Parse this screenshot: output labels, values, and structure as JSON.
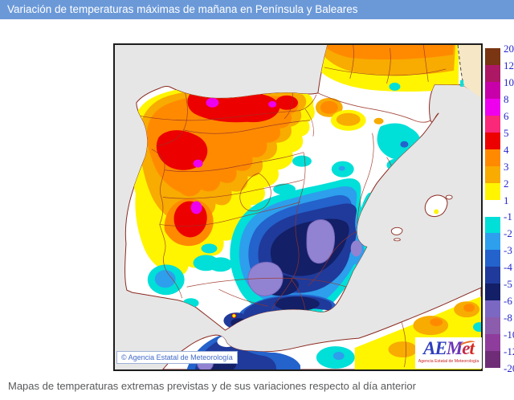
{
  "header": {
    "title": "Variación de temperaturas máximas de mañana en Península y Baleares",
    "bg_color": "#6b99d8",
    "text_color": "#ffffff"
  },
  "map": {
    "copyright": "© Agencia Estatal de Meteorología",
    "sea_color": "#e6e6e6",
    "land_color": "#ffffff",
    "outside_domain_color": "#f6e8c6",
    "coast_line_color": "#8b2a20"
  },
  "legend": {
    "boundary_labels": [
      "20",
      "12",
      "10",
      "8",
      "6",
      "5",
      "4",
      "3",
      "2",
      "1",
      "-1",
      "-2",
      "-3",
      "-4",
      "-5",
      "-6",
      "-8",
      "-10",
      "-12",
      "-20"
    ],
    "band_colors": [
      "#7a3512",
      "#ac1864",
      "#c800aa",
      "#ee00ee",
      "#fa2878",
      "#ec0000",
      "#ff8a00",
      "#f8ab00",
      "#fff500",
      "#ffffff",
      "#00dfd8",
      "#2d9fec",
      "#2462cc",
      "#1f3a9a",
      "#131f66",
      "#7b68c3",
      "#8c5cad",
      "#8f3d9c",
      "#6f2d78"
    ],
    "label_color": "#2626cc"
  },
  "logo": {
    "letters": [
      {
        "ch": "A",
        "color": "#2e3fbe"
      },
      {
        "ch": "E",
        "color": "#2e3fbe"
      },
      {
        "ch": "M",
        "color": "#6a35b5"
      },
      {
        "ch": "e",
        "color": "#c42b49"
      },
      {
        "ch": "t",
        "color": "#d5281f"
      }
    ],
    "subtitle": "Agencia Estatal de Meteorología",
    "subtitle_color": "#cc2222"
  },
  "caption": {
    "text": "Mapas de temperaturas extremas previstas y de sus variaciones respecto al día anterior"
  }
}
